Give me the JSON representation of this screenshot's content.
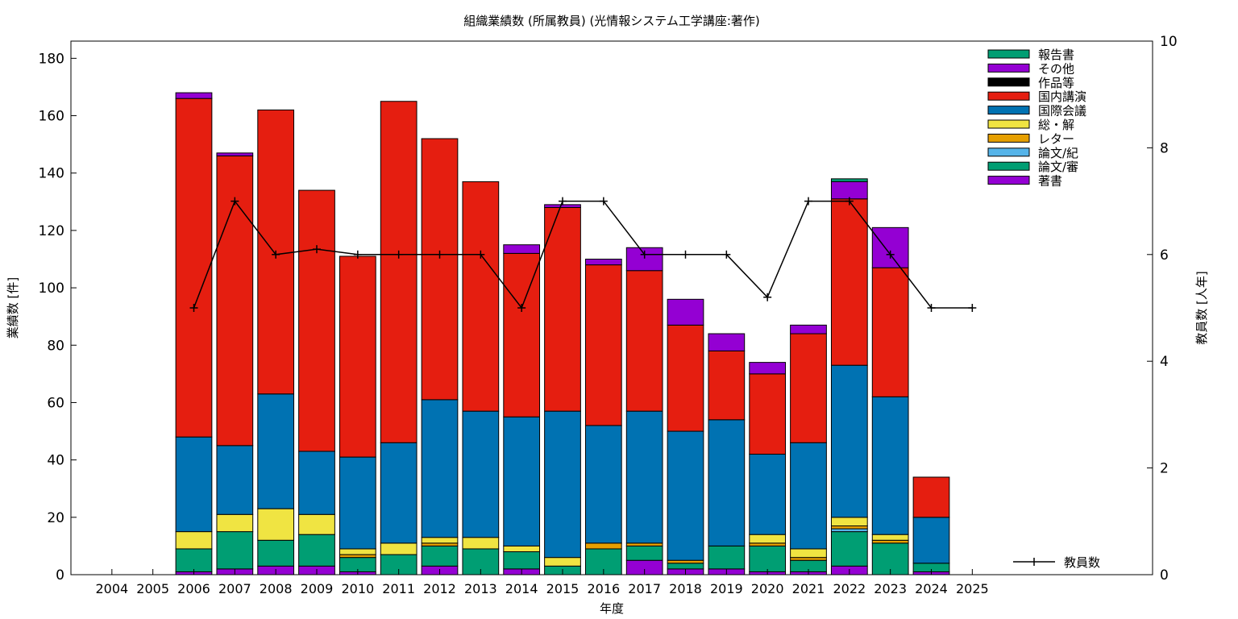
{
  "chart_data": {
    "type": "bar",
    "title": "組織業績数 (所属教員) (光情報システム工学講座:著作)",
    "xlabel": "年度",
    "ylabel": "業績数 [件]",
    "y2label": "教員数 [人年]",
    "stacked": true,
    "categories": [
      "2004",
      "2005",
      "2006",
      "2007",
      "2008",
      "2009",
      "2010",
      "2011",
      "2012",
      "2013",
      "2014",
      "2015",
      "2016",
      "2017",
      "2018",
      "2019",
      "2020",
      "2021",
      "2022",
      "2023",
      "2024",
      "2025"
    ],
    "ylim": [
      0,
      186
    ],
    "yticks": [
      0,
      20,
      40,
      60,
      80,
      100,
      120,
      140,
      160,
      180
    ],
    "y2lim": [
      0,
      10
    ],
    "y2ticks": [
      0,
      2,
      4,
      6,
      8,
      10
    ],
    "grid": false,
    "legend_position": "top-right",
    "series": [
      {
        "name": "著書",
        "color": "#9400d3",
        "values": [
          0,
          0,
          1,
          2,
          3,
          3,
          1,
          0,
          3,
          0,
          2,
          0,
          0,
          5,
          2,
          2,
          1,
          1,
          3,
          0,
          1,
          0
        ]
      },
      {
        "name": "論文/審",
        "color": "#009e73",
        "values": [
          0,
          0,
          8,
          13,
          9,
          11,
          5,
          7,
          7,
          9,
          6,
          3,
          9,
          5,
          2,
          8,
          9,
          4,
          12,
          11,
          3,
          0
        ]
      },
      {
        "name": "論文/紀",
        "color": "#56b4e9",
        "values": [
          0,
          0,
          0,
          0,
          0,
          0,
          0,
          0,
          0,
          0,
          0,
          0,
          0,
          0,
          0,
          0,
          0,
          0,
          1,
          0,
          0,
          0
        ]
      },
      {
        "name": "レター",
        "color": "#e69f00",
        "values": [
          0,
          0,
          0,
          0,
          0,
          0,
          1,
          0,
          1,
          0,
          0,
          0,
          2,
          1,
          1,
          0,
          1,
          1,
          1,
          1,
          0,
          0
        ]
      },
      {
        "name": "総・解",
        "color": "#f0e442",
        "values": [
          0,
          0,
          6,
          6,
          11,
          7,
          2,
          4,
          2,
          4,
          2,
          3,
          0,
          0,
          0,
          0,
          3,
          3,
          3,
          2,
          0,
          0
        ]
      },
      {
        "name": "国際会議",
        "color": "#0072b2",
        "values": [
          0,
          0,
          33,
          24,
          40,
          22,
          32,
          35,
          48,
          44,
          45,
          51,
          41,
          46,
          45,
          44,
          28,
          37,
          53,
          48,
          16,
          0
        ]
      },
      {
        "name": "国内講演",
        "color": "#e51e10",
        "values": [
          0,
          0,
          118,
          101,
          99,
          91,
          70,
          119,
          91,
          80,
          57,
          71,
          56,
          49,
          37,
          24,
          28,
          38,
          58,
          45,
          14,
          0
        ]
      },
      {
        "name": "作品等",
        "color": "#000000",
        "values": [
          0,
          0,
          0,
          0,
          0,
          0,
          0,
          0,
          0,
          0,
          0,
          0,
          0,
          0,
          0,
          0,
          0,
          0,
          0,
          0,
          0,
          0
        ]
      },
      {
        "name": "その他",
        "color": "#9400d3",
        "values": [
          0,
          0,
          2,
          1,
          0,
          0,
          0,
          0,
          0,
          0,
          3,
          1,
          2,
          8,
          9,
          6,
          4,
          3,
          6,
          14,
          0,
          0
        ]
      },
      {
        "name": "報告書",
        "color": "#009e73",
        "values": [
          0,
          0,
          0,
          0,
          0,
          0,
          0,
          0,
          0,
          0,
          0,
          0,
          0,
          0,
          0,
          0,
          0,
          0,
          1,
          0,
          0,
          0
        ]
      }
    ],
    "legend_order": [
      "報告書",
      "その他",
      "作品等",
      "国内講演",
      "国際会議",
      "総・解",
      "レター",
      "論文/紀",
      "論文/審",
      "著書"
    ],
    "line_series": {
      "name": "教員数",
      "axis": "y2",
      "color": "#000000",
      "values": [
        null,
        null,
        5,
        7,
        6,
        6.1,
        6,
        6,
        6,
        6,
        5,
        7,
        7,
        6,
        6,
        6,
        5.2,
        7,
        7,
        6,
        5,
        5
      ]
    }
  }
}
